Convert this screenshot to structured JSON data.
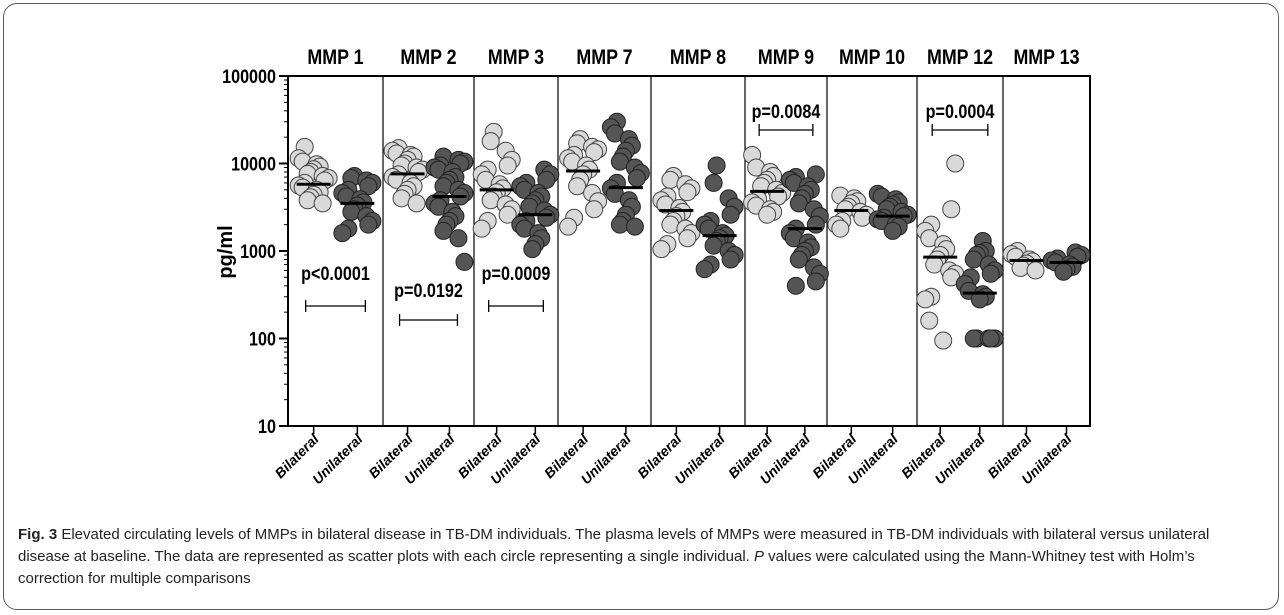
{
  "chart_data": {
    "type": "scatter",
    "y_scale": "log",
    "ylabel": "pg/ml",
    "ylim": [
      10,
      100000
    ],
    "y_ticks": [
      "10",
      "100",
      "1000",
      "10000",
      "100000"
    ],
    "group_labels": [
      "Bilateral",
      "Unilateral"
    ],
    "group_colors": {
      "Bilateral": "#d9d9d9",
      "Unilateral": "#555555"
    },
    "panels": [
      {
        "name": "MMP 1",
        "bilateral": [
          15500,
          11500,
          10500,
          9800,
          9200,
          8600,
          8000,
          7600,
          7200,
          6800,
          6400,
          6000,
          5600,
          5300,
          5000,
          4700,
          4400,
          4100,
          3800,
          3500
        ],
        "unilateral": [
          7200,
          6800,
          6400,
          6000,
          5500,
          5000,
          4600,
          4200,
          3900,
          3600,
          3300,
          3000,
          2800,
          2500,
          2200,
          2000,
          1800,
          1600
        ],
        "median_bilateral": 5800,
        "median_unilateral": 3500,
        "p_value": "p<0.0001"
      },
      {
        "name": "MMP 2",
        "bilateral": [
          15000,
          14000,
          13000,
          12500,
          12000,
          11000,
          10000,
          9500,
          9000,
          8500,
          8000,
          7500,
          7000,
          6500,
          6000,
          5500,
          5000,
          4500,
          4000,
          3500
        ],
        "unilateral": [
          12000,
          11000,
          10500,
          10000,
          9500,
          9000,
          8500,
          8000,
          7000,
          6500,
          6000,
          5500,
          5000,
          4600,
          4200,
          3800,
          3500,
          3200,
          2800,
          2500,
          2200,
          2000,
          1700,
          1400,
          750
        ],
        "median_bilateral": 7600,
        "median_unilateral": 4200,
        "p_value": "p=0.0192"
      },
      {
        "name": "MMP 3",
        "bilateral": [
          23000,
          18000,
          14000,
          11000,
          9500,
          8500,
          7500,
          6500,
          5800,
          5200,
          4700,
          4200,
          3800,
          3400,
          3000,
          2600,
          2200,
          1800
        ],
        "unilateral": [
          8500,
          7500,
          6500,
          6000,
          5500,
          5000,
          4600,
          4200,
          3800,
          3500,
          3200,
          2900,
          2600,
          2400,
          2200,
          2000,
          1800,
          1600,
          1400,
          1200,
          1050
        ],
        "median_bilateral": 5000,
        "median_unilateral": 2600,
        "p_value": "p=0.0009"
      },
      {
        "name": "MMP 7",
        "bilateral": [
          19000,
          17000,
          15500,
          14500,
          13500,
          12500,
          11500,
          10500,
          9500,
          8500,
          7500,
          6500,
          5500,
          4600,
          3700,
          3000,
          2400,
          1900
        ],
        "unilateral": [
          30000,
          26000,
          22000,
          19000,
          16000,
          14000,
          12000,
          10500,
          9000,
          7800,
          6800,
          6000,
          5200,
          4500,
          3800,
          3200,
          2600,
          2200,
          2000,
          1900
        ],
        "median_bilateral": 8200,
        "median_unilateral": 5300,
        "p_value": ""
      },
      {
        "name": "MMP 8",
        "bilateral": [
          7200,
          6500,
          5800,
          5200,
          4700,
          4200,
          3800,
          3400,
          3100,
          2800,
          2500,
          2200,
          2000,
          1800,
          1600,
          1400,
          1200,
          1050
        ],
        "unilateral": [
          9500,
          6000,
          4000,
          3200,
          2600,
          2200,
          2000,
          1800,
          1600,
          1500,
          1400,
          1300,
          1150,
          1000,
          900,
          800,
          700,
          620
        ],
        "median_bilateral": 2900,
        "median_unilateral": 1500,
        "p_value": ""
      },
      {
        "name": "MMP 9",
        "bilateral": [
          12500,
          9000,
          8000,
          7200,
          6500,
          6000,
          5500,
          5000,
          4600,
          4200,
          3900,
          3600,
          3300,
          3000,
          2800,
          2600
        ],
        "unilateral": [
          7500,
          7000,
          6500,
          6000,
          5500,
          5000,
          4500,
          4000,
          3500,
          3000,
          2500,
          2000,
          1800,
          1600,
          1400,
          1250,
          1100,
          1000,
          900,
          800,
          650,
          550,
          450,
          400
        ],
        "median_bilateral": 4800,
        "median_unilateral": 1800,
        "p_value": "p=0.0084"
      },
      {
        "name": "MMP 10",
        "bilateral": [
          4300,
          4000,
          3700,
          3500,
          3200,
          3000,
          2800,
          2600,
          2400,
          2200,
          2000,
          1800
        ],
        "unilateral": [
          4500,
          4200,
          3900,
          3600,
          3400,
          3200,
          3000,
          2800,
          2600,
          2500,
          2400,
          2300,
          2200,
          2000,
          1900,
          1700
        ],
        "median_bilateral": 2900,
        "median_unilateral": 2500,
        "p_value": ""
      },
      {
        "name": "MMP 12",
        "bilateral": [
          10000,
          3000,
          2000,
          1700,
          1400,
          1200,
          1050,
          900,
          800,
          700,
          600,
          550,
          500,
          300,
          280,
          160,
          95
        ],
        "unilateral": [
          1300,
          1000,
          950,
          900,
          800,
          700,
          600,
          550,
          500,
          420,
          350,
          320,
          300,
          280,
          100,
          100,
          100,
          100,
          100
        ],
        "median_bilateral": 850,
        "median_unilateral": 330,
        "p_value": "p=0.0004"
      },
      {
        "name": "MMP 13",
        "bilateral": [
          1000,
          920,
          860,
          800,
          760,
          720,
          680,
          640,
          600
        ],
        "unilateral": [
          960,
          900,
          860,
          820,
          780,
          740,
          700,
          660,
          620,
          580
        ],
        "median_bilateral": 780,
        "median_unilateral": 740,
        "p_value": ""
      }
    ]
  },
  "caption": {
    "fig_label": "Fig. 3",
    "text_1": " Elevated circulating levels of MMPs in bilateral disease in TB-DM individuals. The plasma levels of MMPs were measured in TB-DM individuals with bilateral versus unilateral disease at baseline. The data are represented as scatter plots with each circle representing a single individual. ",
    "p_italic": "P",
    "text_2": " values were calculated using the Mann-Whitney test with Holm’s correction for multiple comparisons"
  }
}
